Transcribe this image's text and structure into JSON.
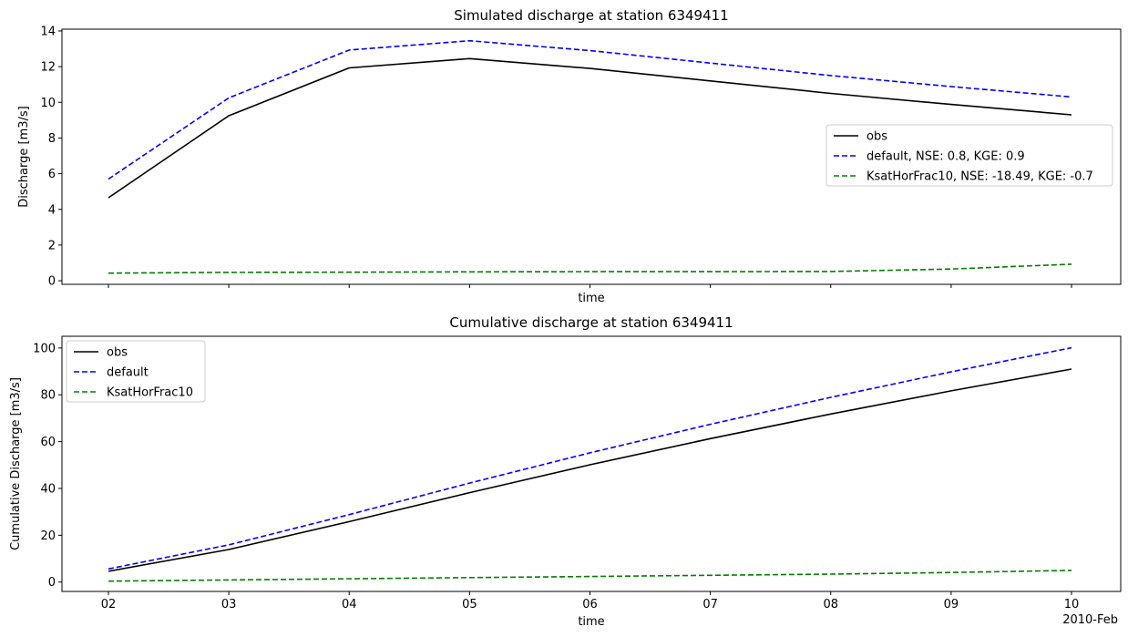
{
  "chart_data": [
    {
      "type": "line",
      "title": "Simulated discharge at station 6349411",
      "xlabel": "time",
      "ylabel": "Discharge [m3/s]",
      "x": [
        "02",
        "03",
        "04",
        "05",
        "06",
        "07",
        "08",
        "09",
        "10"
      ],
      "x_offset_label": "",
      "show_xtick_labels": false,
      "ylim": [
        -0.2,
        14.1
      ],
      "yticks": [
        0,
        2,
        4,
        6,
        8,
        10,
        12,
        14
      ],
      "legend_position": "center-right",
      "grid": false,
      "series": [
        {
          "name": "obs",
          "color": "#000000",
          "dash": "solid",
          "values": [
            4.65,
            9.25,
            11.93,
            12.45,
            11.9,
            11.2,
            10.5,
            9.88,
            9.3
          ]
        },
        {
          "name": "default, NSE: 0.8, KGE: 0.9",
          "color": "#0000ff",
          "dash": "dashed",
          "values": [
            5.7,
            10.25,
            12.93,
            13.45,
            12.9,
            12.2,
            11.5,
            10.88,
            10.3
          ]
        },
        {
          "name": "KsatHorFrac10, NSE: -18.49, KGE: -0.7",
          "color": "#008000",
          "dash": "dashed",
          "values": [
            0.43,
            0.47,
            0.48,
            0.5,
            0.51,
            0.51,
            0.52,
            0.66,
            0.93
          ]
        }
      ]
    },
    {
      "type": "line",
      "title": "Cumulative discharge at station 6349411",
      "xlabel": "time",
      "ylabel": "Cumulative Discharge [m3/s]",
      "x": [
        "02",
        "03",
        "04",
        "05",
        "06",
        "07",
        "08",
        "09",
        "10"
      ],
      "x_offset_label": "2010-Feb",
      "show_xtick_labels": true,
      "ylim": [
        -4,
        105
      ],
      "yticks": [
        0,
        20,
        40,
        60,
        80,
        100
      ],
      "legend_position": "upper-left",
      "grid": false,
      "series": [
        {
          "name": "obs",
          "color": "#000000",
          "dash": "solid",
          "values": [
            4.6,
            13.9,
            25.8,
            38.2,
            50.1,
            61.3,
            71.8,
            81.7,
            91.0
          ]
        },
        {
          "name": "default",
          "color": "#0000ff",
          "dash": "dashed",
          "values": [
            5.6,
            15.9,
            28.8,
            42.3,
            55.2,
            67.4,
            78.9,
            89.8,
            100.1
          ]
        },
        {
          "name": "KsatHorFrac10",
          "color": "#008000",
          "dash": "dashed",
          "values": [
            0.4,
            0.9,
            1.4,
            1.9,
            2.4,
            2.9,
            3.4,
            4.1,
            5.0
          ]
        }
      ]
    }
  ]
}
